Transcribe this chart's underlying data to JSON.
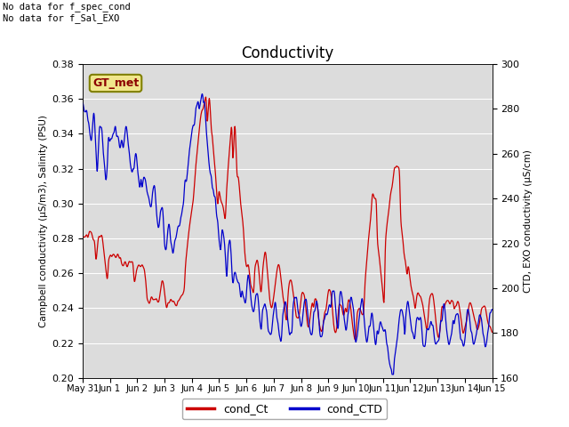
{
  "title": "Conductivity",
  "ylabel_left": "Campbell conductivity (μS/m3), Salinity (PSU)",
  "ylabel_right": "CTD, EXO conductivity (μS/cm)",
  "ylim_left": [
    0.2,
    0.38
  ],
  "ylim_right": [
    160,
    300
  ],
  "yticks_left": [
    0.2,
    0.22,
    0.24,
    0.26,
    0.28,
    0.3,
    0.32,
    0.34,
    0.36,
    0.38
  ],
  "yticks_right": [
    160,
    180,
    200,
    220,
    240,
    260,
    280,
    300
  ],
  "color_red": "#cc0000",
  "color_blue": "#0000cc",
  "legend_labels": [
    "cond_Ct",
    "cond_CTD"
  ],
  "annotation_text": "No data for f_spec_cond\nNo data for f_Sal_EXO",
  "gt_met_label": "GT_met",
  "plot_bg_color": "#dcdcdc",
  "grid_color": "#ffffff",
  "n_points": 1200,
  "tick_labels": [
    "May 31",
    "Jun 1",
    "Jun 2",
    "Jun 3",
    "Jun 4",
    "Jun 5",
    "Jun 6",
    "Jun 7",
    "Jun 8",
    "Jun 9",
    "Jun 10",
    "Jun 11",
    "Jun 12",
    "Jun 13",
    "Jun 14",
    "Jun 15"
  ]
}
